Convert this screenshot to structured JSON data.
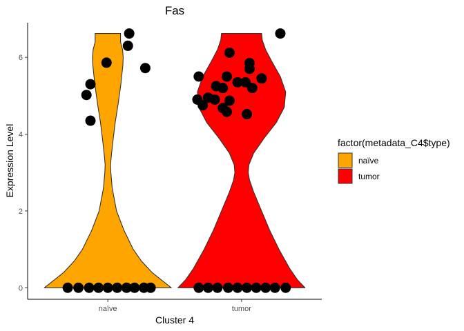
{
  "chart_data": {
    "type": "violin",
    "title": "Fas",
    "xlabel": "Cluster 4",
    "ylabel": "Expression Level",
    "categories": [
      "naïve",
      "tumor"
    ],
    "ylim": [
      -0.3,
      6.9
    ],
    "yticks": [
      0,
      2,
      4,
      6
    ],
    "ytick_labels": [
      "0",
      "2",
      "4",
      "6"
    ],
    "legend": {
      "title": "factor(metadata_C4$type)",
      "placement": "right",
      "entries": [
        {
          "label": "naïve",
          "color": "#FFA500"
        },
        {
          "label": "tumor",
          "color": "#FF0000"
        }
      ]
    },
    "colors": {
      "naïve": "#FFA500",
      "tumor": "#FF0000",
      "outline": "#333333",
      "point": "#000000"
    },
    "grid": false,
    "series": [
      {
        "name": "naïve",
        "density_y": [
          0,
          0.15,
          0.4,
          0.7,
          1.0,
          1.5,
          2.0,
          2.6,
          3.0,
          3.2,
          3.4,
          3.8,
          4.3,
          4.8,
          5.3,
          5.8,
          6.0,
          6.2,
          6.4,
          6.62
        ],
        "density_halfwidth": [
          0.95,
          0.84,
          0.66,
          0.5,
          0.38,
          0.24,
          0.13,
          0.065,
          0.045,
          0.04,
          0.05,
          0.075,
          0.11,
          0.155,
          0.195,
          0.225,
          0.23,
          0.22,
          0.19,
          0.19
        ],
        "points": [
          {
            "x": 0.7,
            "y": 0
          },
          {
            "x": 0.78,
            "y": 0
          },
          {
            "x": 0.86,
            "y": 0
          },
          {
            "x": 0.93,
            "y": 0
          },
          {
            "x": 1.0,
            "y": 0
          },
          {
            "x": 1.07,
            "y": 0
          },
          {
            "x": 1.14,
            "y": 0
          },
          {
            "x": 1.2,
            "y": 0
          },
          {
            "x": 1.27,
            "y": 0
          },
          {
            "x": 1.32,
            "y": 0
          },
          {
            "x": 0.87,
            "y": 4.35
          },
          {
            "x": 0.84,
            "y": 5.02
          },
          {
            "x": 0.87,
            "y": 5.3
          },
          {
            "x": 0.99,
            "y": 5.86
          },
          {
            "x": 1.28,
            "y": 5.72
          },
          {
            "x": 1.15,
            "y": 6.3
          },
          {
            "x": 1.16,
            "y": 6.62
          }
        ]
      },
      {
        "name": "tumor",
        "density_y": [
          0,
          0.2,
          0.5,
          1.0,
          1.5,
          2.0,
          2.5,
          2.8,
          3.0,
          3.2,
          3.5,
          3.9,
          4.3,
          4.7,
          5.1,
          5.5,
          5.9,
          6.2,
          6.45,
          6.62
        ],
        "density_halfwidth": [
          0.95,
          0.84,
          0.72,
          0.56,
          0.42,
          0.3,
          0.18,
          0.12,
          0.1,
          0.11,
          0.18,
          0.34,
          0.52,
          0.64,
          0.66,
          0.58,
          0.45,
          0.36,
          0.31,
          0.3
        ],
        "points": [
          {
            "x": 1.68,
            "y": 0
          },
          {
            "x": 1.75,
            "y": 0
          },
          {
            "x": 1.82,
            "y": 0
          },
          {
            "x": 1.9,
            "y": 0
          },
          {
            "x": 1.97,
            "y": 0
          },
          {
            "x": 2.04,
            "y": 0
          },
          {
            "x": 2.11,
            "y": 0
          },
          {
            "x": 2.18,
            "y": 0
          },
          {
            "x": 2.25,
            "y": 0
          },
          {
            "x": 2.33,
            "y": 0
          },
          {
            "x": 1.67,
            "y": 4.9
          },
          {
            "x": 1.71,
            "y": 4.75
          },
          {
            "x": 1.75,
            "y": 4.95
          },
          {
            "x": 1.8,
            "y": 4.9
          },
          {
            "x": 1.68,
            "y": 5.5
          },
          {
            "x": 1.81,
            "y": 5.25
          },
          {
            "x": 1.86,
            "y": 5.2
          },
          {
            "x": 1.89,
            "y": 5.5
          },
          {
            "x": 1.91,
            "y": 4.87
          },
          {
            "x": 1.86,
            "y": 4.68
          },
          {
            "x": 1.89,
            "y": 4.58
          },
          {
            "x": 1.97,
            "y": 5.35
          },
          {
            "x": 2.03,
            "y": 5.35
          },
          {
            "x": 2.06,
            "y": 5.85
          },
          {
            "x": 2.06,
            "y": 5.7
          },
          {
            "x": 2.08,
            "y": 5.2
          },
          {
            "x": 2.15,
            "y": 5.45
          },
          {
            "x": 2.04,
            "y": 4.52
          },
          {
            "x": 1.91,
            "y": 6.12
          },
          {
            "x": 2.29,
            "y": 6.62
          }
        ]
      }
    ]
  }
}
